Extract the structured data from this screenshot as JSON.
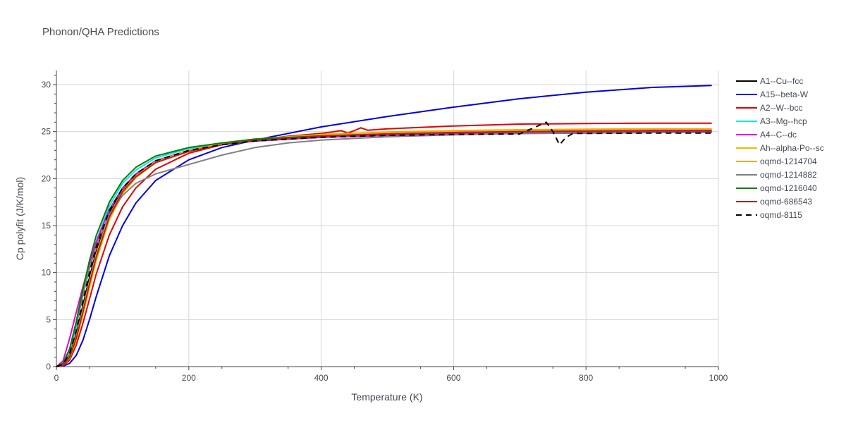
{
  "chart_data": {
    "type": "line",
    "title": "Phonon/QHA Predictions",
    "xlabel": "Temperature (K)",
    "ylabel": "Cp polyfit (J/K/mol)",
    "xlim": [
      0,
      1000
    ],
    "ylim": [
      0,
      31.5
    ],
    "xticks": [
      0,
      200,
      400,
      600,
      800,
      1000
    ],
    "yticks": [
      0,
      5,
      10,
      15,
      20,
      25,
      30
    ],
    "grid": true,
    "legend_position": "right",
    "series": [
      {
        "name": "A1--Cu--fcc",
        "color": "#000000",
        "dash": "solid",
        "x": [
          0,
          10,
          20,
          30,
          40,
          50,
          60,
          80,
          100,
          120,
          150,
          200,
          250,
          300,
          400,
          500,
          600,
          700,
          800,
          900,
          990
        ],
        "y": [
          0,
          0.2,
          1.2,
          3.5,
          6.5,
          9.5,
          12.2,
          16.3,
          18.8,
          20.4,
          21.8,
          23.0,
          23.6,
          24.0,
          24.4,
          24.6,
          24.7,
          24.8,
          24.85,
          24.9,
          24.9
        ]
      },
      {
        "name": "A15--beta-W",
        "color": "#0000dd",
        "dash": "solid",
        "x": [
          0,
          10,
          20,
          30,
          40,
          50,
          60,
          80,
          100,
          120,
          150,
          200,
          250,
          300,
          350,
          400,
          500,
          600,
          700,
          800,
          900,
          990
        ],
        "y": [
          0,
          0.05,
          0.35,
          1.2,
          2.8,
          5.0,
          7.4,
          11.8,
          15.0,
          17.4,
          19.8,
          22.0,
          23.3,
          24.1,
          24.8,
          25.5,
          26.6,
          27.6,
          28.5,
          29.2,
          29.7,
          29.9
        ]
      },
      {
        "name": "A2--W--bcc",
        "color": "#e00000",
        "dash": "solid",
        "x": [
          0,
          10,
          20,
          30,
          40,
          50,
          60,
          80,
          100,
          120,
          150,
          200,
          250,
          300,
          350,
          400,
          420,
          430,
          440,
          450,
          460,
          470,
          500,
          600,
          700,
          800,
          900,
          990
        ],
        "y": [
          0,
          0.1,
          0.7,
          2.3,
          4.6,
          7.2,
          9.8,
          14.0,
          17.0,
          19.0,
          21.0,
          22.7,
          23.6,
          24.1,
          24.5,
          24.8,
          25.0,
          25.1,
          24.85,
          25.1,
          25.4,
          25.15,
          25.3,
          25.6,
          25.8,
          25.85,
          25.9,
          25.9
        ]
      },
      {
        "name": "A3--Mg--hcp",
        "color": "#00e5e5",
        "dash": "solid",
        "x": [
          0,
          10,
          20,
          30,
          40,
          50,
          60,
          80,
          100,
          120,
          150,
          200,
          250,
          300,
          400,
          500,
          600,
          700,
          800,
          900,
          990
        ],
        "y": [
          0,
          0.3,
          1.6,
          4.3,
          7.6,
          10.7,
          13.3,
          17.1,
          19.5,
          20.9,
          22.2,
          23.2,
          23.7,
          24.1,
          24.5,
          24.7,
          24.85,
          24.95,
          25.0,
          25.05,
          25.1
        ]
      },
      {
        "name": "A4--C--dc",
        "color": "#e000e0",
        "dash": "solid",
        "x": [
          0,
          10,
          20,
          30,
          40,
          50,
          60,
          80,
          100,
          120,
          150,
          200,
          250,
          300,
          400,
          500,
          600,
          700,
          800,
          900,
          990
        ],
        "y": [
          0,
          0.6,
          3.0,
          5.8,
          8.5,
          11.0,
          13.2,
          16.7,
          19.0,
          20.5,
          21.9,
          23.0,
          23.6,
          24.0,
          24.4,
          24.6,
          24.75,
          24.85,
          24.9,
          24.95,
          25.0
        ]
      },
      {
        "name": "Ah--alpha-Po--sc",
        "color": "#f5b800",
        "dash": "solid",
        "x": [
          0,
          10,
          20,
          30,
          40,
          50,
          60,
          80,
          100,
          120,
          150,
          200,
          250,
          300,
          400,
          500,
          600,
          700,
          800,
          900,
          990
        ],
        "y": [
          0,
          0.15,
          0.9,
          2.8,
          5.5,
          8.4,
          11.2,
          15.6,
          18.4,
          20.1,
          21.7,
          22.9,
          23.6,
          24.1,
          24.6,
          24.85,
          25.0,
          25.1,
          25.15,
          25.2,
          25.2
        ]
      },
      {
        "name": "oqmd-1214704",
        "color": "#ffa500",
        "dash": "solid",
        "x": [
          0,
          10,
          20,
          30,
          40,
          50,
          60,
          80,
          100,
          120,
          150,
          200,
          250,
          300,
          400,
          500,
          600,
          700,
          800,
          900,
          990
        ],
        "y": [
          0,
          0.2,
          1.1,
          3.2,
          6.1,
          9.1,
          11.9,
          16.1,
          18.7,
          20.3,
          21.8,
          23.0,
          23.7,
          24.2,
          24.7,
          24.95,
          25.1,
          25.2,
          25.25,
          25.3,
          25.3
        ]
      },
      {
        "name": "oqmd-1214882",
        "color": "#808080",
        "dash": "solid",
        "x": [
          0,
          10,
          20,
          30,
          40,
          50,
          60,
          80,
          100,
          120,
          150,
          200,
          250,
          300,
          350,
          400,
          500,
          600,
          700,
          800,
          900,
          990
        ],
        "y": [
          0,
          0.3,
          1.8,
          4.5,
          7.6,
          10.4,
          12.8,
          16.2,
          18.2,
          19.5,
          20.5,
          21.5,
          22.5,
          23.3,
          23.8,
          24.1,
          24.45,
          24.65,
          24.8,
          24.85,
          24.9,
          24.9
        ]
      },
      {
        "name": "oqmd-1216040",
        "color": "#008000",
        "dash": "solid",
        "x": [
          0,
          10,
          20,
          30,
          40,
          50,
          60,
          80,
          100,
          120,
          150,
          200,
          250,
          300,
          400,
          500,
          600,
          700,
          800,
          900,
          990
        ],
        "y": [
          0,
          0.35,
          1.9,
          4.8,
          8.2,
          11.3,
          13.9,
          17.5,
          19.8,
          21.2,
          22.4,
          23.3,
          23.8,
          24.2,
          24.55,
          24.75,
          24.9,
          25.0,
          25.05,
          25.1,
          25.1
        ]
      },
      {
        "name": "oqmd-686543",
        "color": "#b22222",
        "dash": "solid",
        "x": [
          0,
          10,
          20,
          30,
          40,
          50,
          60,
          80,
          100,
          120,
          150,
          200,
          250,
          300,
          400,
          500,
          600,
          700,
          800,
          900,
          990
        ],
        "y": [
          0,
          0.15,
          1.0,
          3.0,
          5.8,
          8.8,
          11.6,
          15.9,
          18.6,
          20.2,
          21.7,
          22.9,
          23.6,
          24.05,
          24.5,
          24.75,
          24.9,
          25.0,
          25.05,
          25.1,
          25.1
        ]
      },
      {
        "name": "oqmd-8115",
        "color": "#000000",
        "dash": "dash",
        "x": [
          0,
          10,
          20,
          30,
          40,
          50,
          60,
          80,
          100,
          120,
          150,
          200,
          250,
          300,
          400,
          500,
          600,
          700,
          740,
          750,
          760,
          770,
          780,
          800,
          900,
          990
        ],
        "y": [
          0,
          0.25,
          1.4,
          3.8,
          6.9,
          10.0,
          12.7,
          16.6,
          19.0,
          20.5,
          21.9,
          23.0,
          23.6,
          24.0,
          24.4,
          24.6,
          24.7,
          24.75,
          26.0,
          25.0,
          23.6,
          24.4,
          24.8,
          24.8,
          24.85,
          24.85
        ]
      }
    ]
  }
}
